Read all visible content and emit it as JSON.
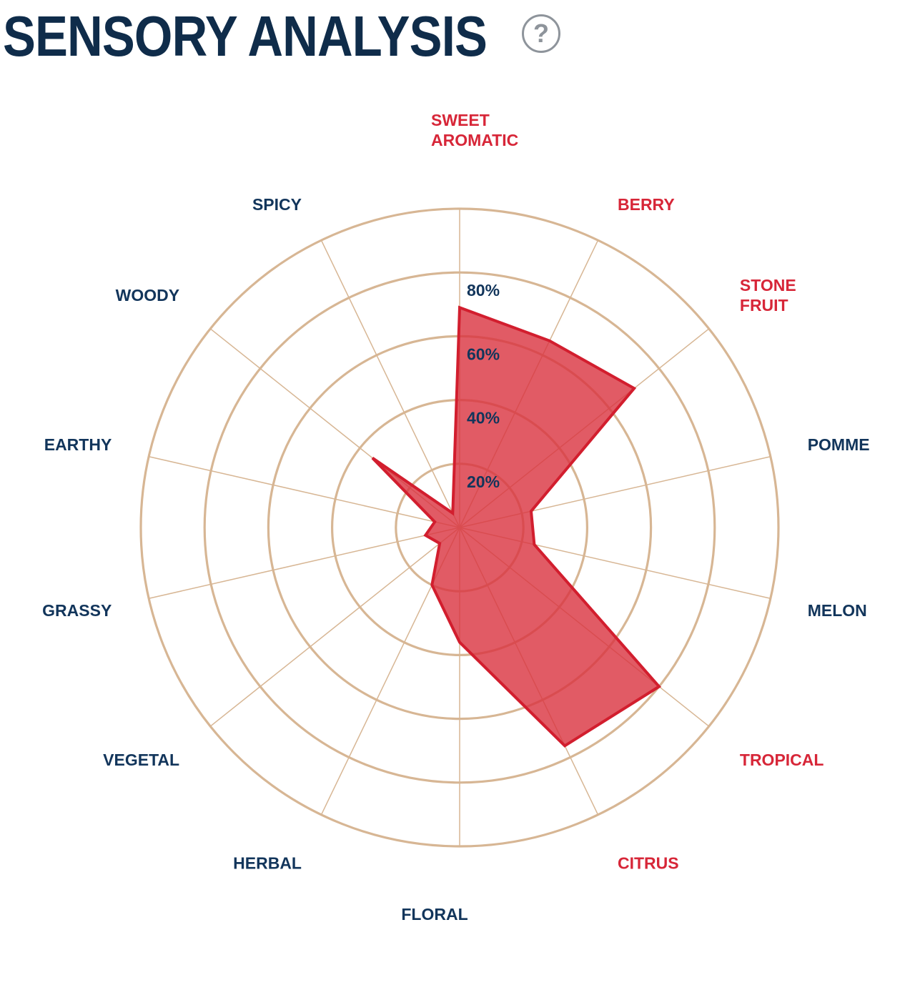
{
  "header": {
    "title": "SENSORY ANALYSIS",
    "help_glyph": "?"
  },
  "chart_data": {
    "type": "radar",
    "title": "SENSORY ANALYSIS",
    "rmax": 100,
    "rings": [
      20,
      40,
      60,
      80,
      100
    ],
    "tick_labels": [
      "20%",
      "40%",
      "60%",
      "80%"
    ],
    "categories": [
      {
        "label": [
          "SWEET",
          "AROMATIC"
        ],
        "highlight": true
      },
      {
        "label": [
          "BERRY"
        ],
        "highlight": true
      },
      {
        "label": [
          "STONE",
          "FRUIT"
        ],
        "highlight": true
      },
      {
        "label": [
          "POMME"
        ],
        "highlight": false
      },
      {
        "label": [
          "MELON"
        ],
        "highlight": false
      },
      {
        "label": [
          "TROPICAL"
        ],
        "highlight": true
      },
      {
        "label": [
          "CITRUS"
        ],
        "highlight": true
      },
      {
        "label": [
          "FLORAL"
        ],
        "highlight": false
      },
      {
        "label": [
          "HERBAL"
        ],
        "highlight": false
      },
      {
        "label": [
          "VEGETAL"
        ],
        "highlight": false
      },
      {
        "label": [
          "GRASSY"
        ],
        "highlight": false
      },
      {
        "label": [
          "EARTHY"
        ],
        "highlight": false
      },
      {
        "label": [
          "WOODY"
        ],
        "highlight": false
      },
      {
        "label": [
          "SPICY"
        ],
        "highlight": false
      }
    ],
    "values": [
      69,
      65,
      70,
      23,
      24,
      80,
      76,
      36,
      20,
      8,
      11,
      8,
      35,
      5
    ],
    "colors": {
      "grid": "#d7b694",
      "fill": "#d9323f",
      "fill_opacity": 0.8,
      "stroke": "#d21e2e",
      "label_highlight": "#d72638",
      "label_normal": "#12355b"
    }
  }
}
